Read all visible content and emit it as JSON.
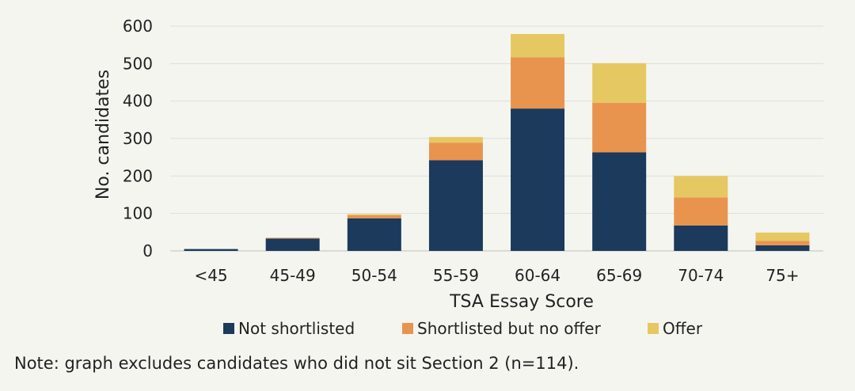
{
  "chart_data": {
    "type": "bar",
    "stacked": true,
    "categories": [
      "<45",
      "45-49",
      "50-54",
      "55-59",
      "60-64",
      "65-69",
      "70-74",
      "75+"
    ],
    "series": [
      {
        "name": "Not shortlisted",
        "color": "#1b3a5c",
        "values": [
          5,
          33,
          87,
          242,
          380,
          263,
          68,
          15
        ]
      },
      {
        "name": "Shortlisted but no offer",
        "color": "#e8944f",
        "values": [
          0,
          2,
          8,
          47,
          137,
          132,
          75,
          12
        ]
      },
      {
        "name": "Offer",
        "color": "#e6c862",
        "values": [
          0,
          0,
          3,
          15,
          62,
          106,
          57,
          22
        ]
      }
    ],
    "xlabel": "TSA Essay Score",
    "ylabel": "No. candidates",
    "ylim": [
      0,
      600
    ],
    "yticks": [
      0,
      100,
      200,
      300,
      400,
      500,
      600
    ],
    "grid": true,
    "legend_position": "bottom"
  },
  "note": "Note: graph excludes candidates who did not sit Section 2 (n=114)."
}
